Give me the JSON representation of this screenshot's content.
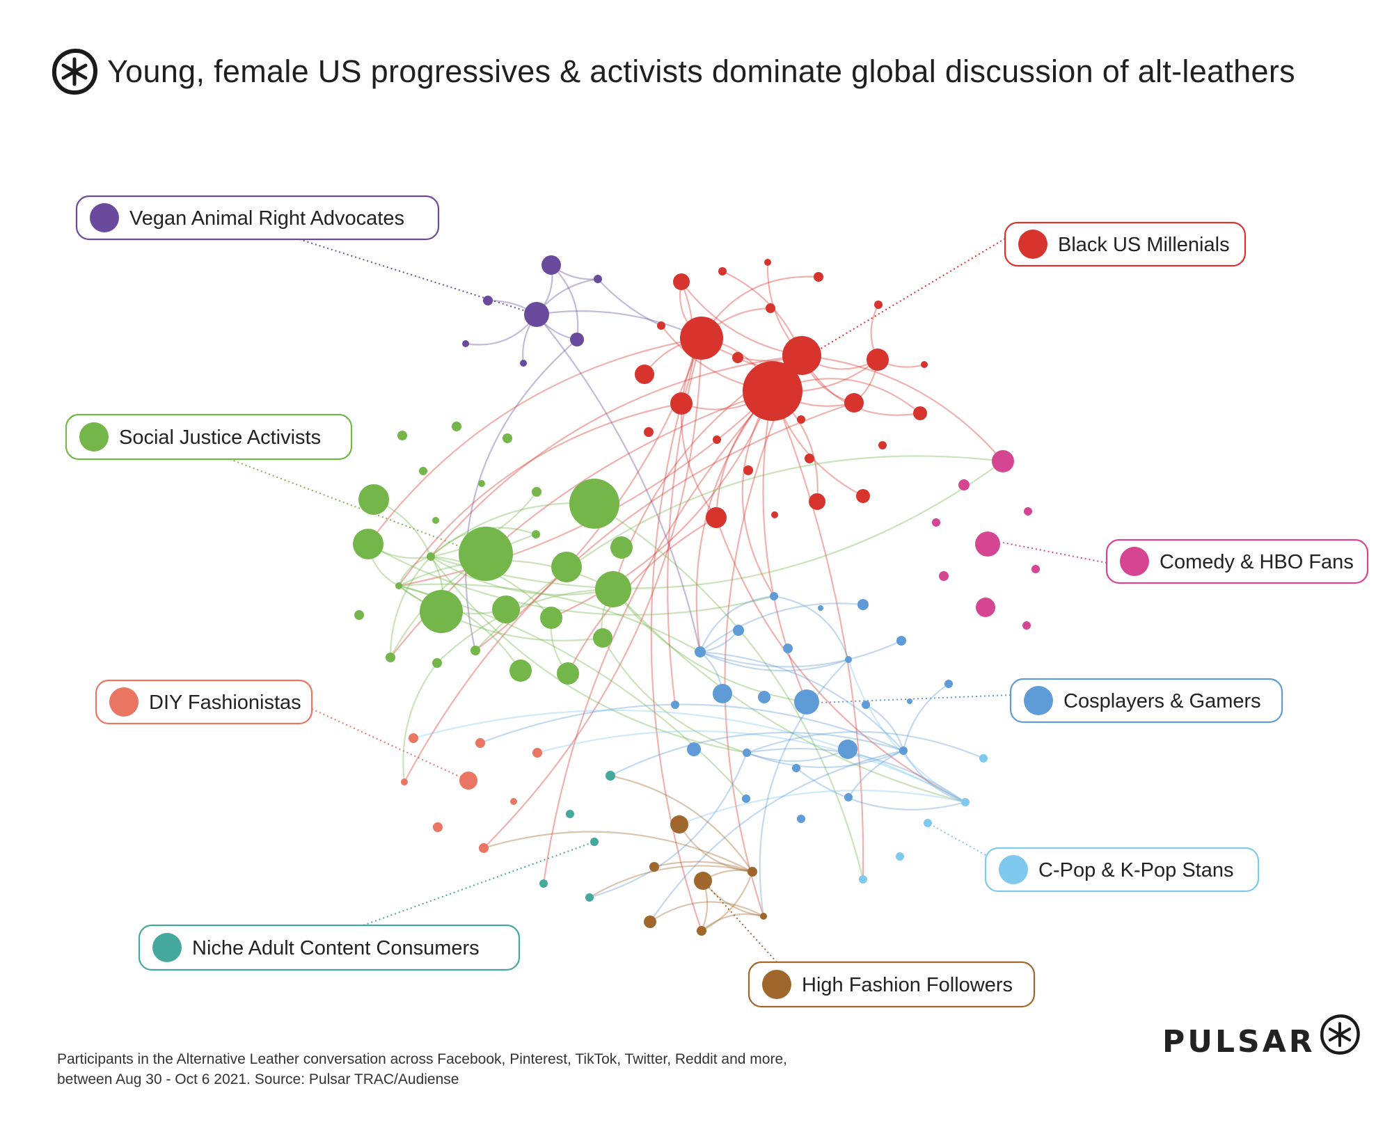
{
  "title": "Young, female US progressives & activists dominate global discussion of alt-leathers",
  "footnote": {
    "line1": "Participants in the Alternative Leather conversation across Facebook, Pinterest, TikTok, Twitter, Reddit and more,",
    "line2": "between Aug 30 - Oct 6 2021. Source: Pulsar TRAC/Audiense"
  },
  "brand": "PULSAR",
  "logo_icon": "asterisk-circle-icon",
  "communities": [
    {
      "id": "vegan",
      "label": "Vegan Animal Right Advocates",
      "color": "#6a4a9c"
    },
    {
      "id": "black",
      "label": "Black US Millenials",
      "color": "#d7342e"
    },
    {
      "id": "social",
      "label": "Social Justice Activists",
      "color": "#74b64a"
    },
    {
      "id": "comedy",
      "label": "Comedy & HBO Fans",
      "color": "#d54592"
    },
    {
      "id": "diy",
      "label": "DIY Fashionistas",
      "color": "#ea7562"
    },
    {
      "id": "cosplay",
      "label": "Cosplayers & Gamers",
      "color": "#5f9bd6"
    },
    {
      "id": "kpop",
      "label": "C-Pop & K-Pop Stans",
      "color": "#7fc8ee"
    },
    {
      "id": "niche",
      "label": "Niche Adult Content Consumers",
      "color": "#45a89d"
    },
    {
      "id": "fashion",
      "label": "High Fashion Followers",
      "color": "#a0672d"
    }
  ]
}
